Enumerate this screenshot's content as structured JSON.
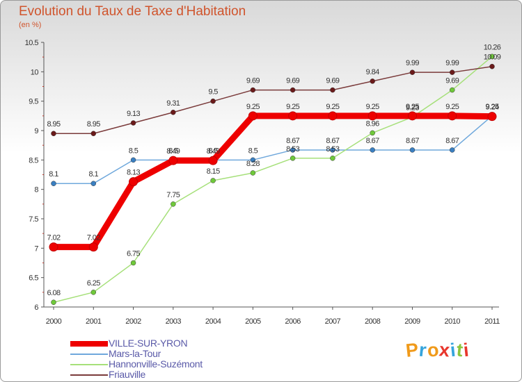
{
  "header": {
    "title": "Evolution du Taux de Taxe d'Habitation",
    "subtitle": "(en %)"
  },
  "brand": {
    "letters": [
      "P",
      "r",
      "o",
      "x",
      "i",
      "t",
      "i"
    ],
    "colors": [
      "#f09a1a",
      "#35a4dc",
      "#f09a1a",
      "#e8372d",
      "#35a4dc",
      "#8cc63e",
      "#e8372d"
    ]
  },
  "chart_data": {
    "type": "line",
    "title": "Evolution du Taux de Taxe d'Habitation",
    "ylabel": "(en %)",
    "x": [
      "2000",
      "2001",
      "2002",
      "2003",
      "2004",
      "2005",
      "2006",
      "2007",
      "2008",
      "2009",
      "2010",
      "2011"
    ],
    "ylim": [
      6,
      10.5
    ],
    "yticks": [
      "6",
      "6.5",
      "7",
      "7.5",
      "8",
      "8.5",
      "9",
      "9.5",
      "10",
      "10.5"
    ],
    "grid": false,
    "legend": "bottom-left",
    "series": [
      {
        "name": "VILLE-SUR-YRON",
        "values": [
          7.02,
          7.02,
          8.13,
          8.49,
          8.49,
          9.25,
          9.25,
          9.25,
          9.25,
          9.25,
          9.25,
          9.24
        ],
        "labels": [
          "7.02",
          "7.02",
          "8.13",
          "8.49",
          "8.49",
          "9.25",
          "9.25",
          "9.25",
          "9.25",
          "9.25",
          "9.25",
          "9.24"
        ],
        "color": "#ee0000",
        "marker": "#ee0000",
        "bold": true
      },
      {
        "name": "Mars-la-Tour",
        "values": [
          8.1,
          8.1,
          8.5,
          8.5,
          8.5,
          8.5,
          8.67,
          8.67,
          8.67,
          8.67,
          8.67,
          9.25
        ],
        "labels": [
          "8.1",
          "8.1",
          "8.5",
          "8.5",
          "8.5",
          "8.5",
          "8.67",
          "8.67",
          "8.67",
          "8.67",
          "8.67",
          "9.25"
        ],
        "color": "#6fa8dc",
        "marker": "#3a7fc1"
      },
      {
        "name": "Hannonville-Suzémont",
        "values": [
          6.08,
          6.25,
          6.75,
          7.75,
          8.15,
          8.28,
          8.53,
          8.53,
          8.96,
          9.23,
          9.69,
          10.26
        ],
        "labels": [
          "6.08",
          "6.25",
          "6.75",
          "7.75",
          "8.15",
          "8.28",
          "8.53",
          "8.53",
          "8.96",
          "9.23",
          "9.69",
          "10.26"
        ],
        "color": "#a6e07a",
        "marker": "#6fc93a"
      },
      {
        "name": "Friauville",
        "values": [
          8.95,
          8.95,
          9.13,
          9.31,
          9.5,
          9.69,
          9.69,
          9.69,
          9.84,
          9.99,
          9.99,
          10.09
        ],
        "labels": [
          "8.95",
          "8.95",
          "9.13",
          "9.31",
          "9.5",
          "9.69",
          "9.69",
          "9.69",
          "9.84",
          "9.99",
          "9.99",
          "10.09"
        ],
        "color": "#7a3a3a",
        "marker": "#6b1a1a"
      }
    ]
  }
}
